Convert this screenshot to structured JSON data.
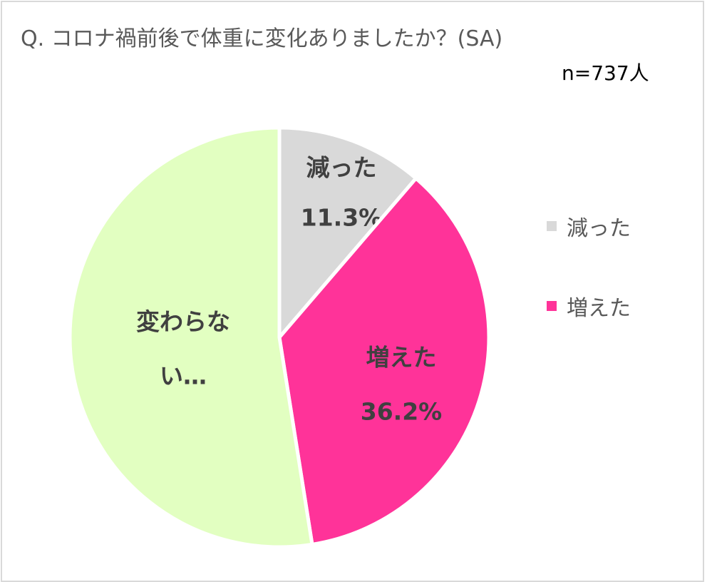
{
  "title": "Q. コロナ禍前後で体重に変化ありましたか？(SA)",
  "sample_size": "n=737人",
  "chart_data": {
    "type": "pie",
    "title": "Q. コロナ禍前後で体重に変化ありましたか？(SA)",
    "slices": [
      {
        "label": "減った",
        "value": 11.3,
        "value_label": "11.3%",
        "color": "#d9d9d9"
      },
      {
        "label": "増えた",
        "value": 36.2,
        "value_label": "36.2%",
        "color": "#ff3399"
      },
      {
        "label": "変わらない",
        "value": 52.5,
        "color": "#e2ffc1",
        "data_label_lines": [
          "変わらな",
          "い…"
        ]
      }
    ],
    "legend": {
      "position": "right",
      "entries": [
        {
          "label": "減った",
          "color": "#d9d9d9"
        },
        {
          "label": "増えた",
          "color": "#ff3399"
        }
      ]
    }
  }
}
